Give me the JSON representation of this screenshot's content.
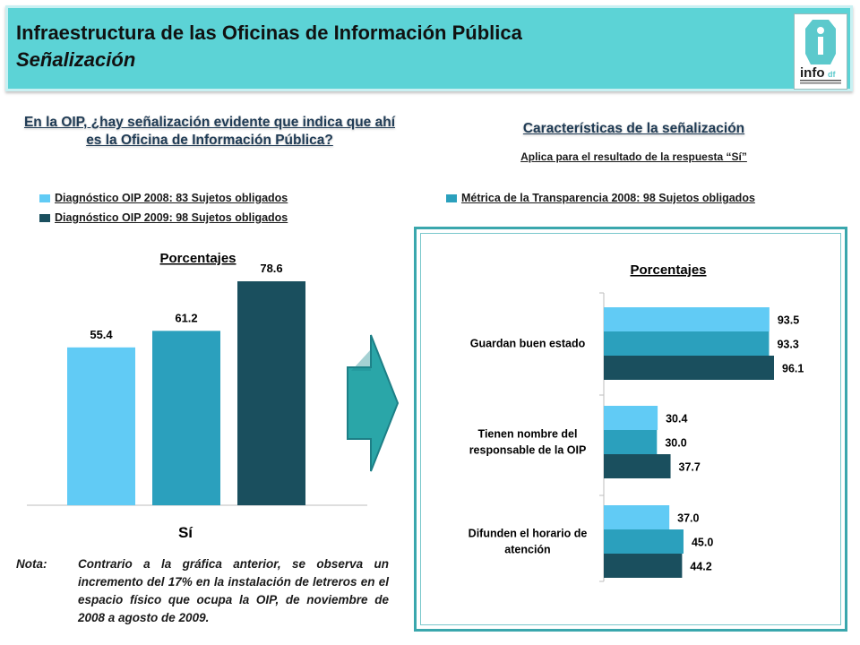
{
  "header": {
    "title": "Infraestructura de las Oficinas de Información Pública",
    "subtitle": "Señalización",
    "logo_text": "info",
    "logo_suffix": "df"
  },
  "left": {
    "question": "En la OIP, ¿hay  señalización evidente que indica que ahí es la Oficina de Información Pública?",
    "legend": [
      {
        "label": "Diagnóstico OIP 2008: 83 Sujetos obligados",
        "color": "#61cbf5"
      },
      {
        "label": "Diagnóstico OIP 2009: 98 Sujetos obligados",
        "color": "#1a4f5e"
      }
    ]
  },
  "right": {
    "heading": "Características de la señalización",
    "subheading": "Aplica para el resultado de la respuesta “Sí”",
    "legend": [
      {
        "label": "Métrica de la Transparencia 2008: 98 Sujetos obligados",
        "color": "#2ba0bd"
      }
    ]
  },
  "note": {
    "label": "Nota:",
    "text": "Contrario a la gráfica anterior, se observa un incremento del 17% en la instalación de letreros en el espacio físico que ocupa la OIP, de noviembre de 2008 a agosto de 2009."
  },
  "chart_data": [
    {
      "type": "bar",
      "title": "Porcentajes",
      "categories": [
        "Sí"
      ],
      "series": [
        {
          "name": "Diagnóstico OIP 2008: 83 Sujetos obligados",
          "values": [
            55.4
          ],
          "color": "#61cbf5"
        },
        {
          "name": "Métrica de la Transparencia 2008: 98 Sujetos obligados",
          "values": [
            61.2
          ],
          "color": "#2ba0bd"
        },
        {
          "name": "Diagnóstico OIP 2009: 98 Sujetos obligados",
          "values": [
            78.6
          ],
          "color": "#1a4f5e"
        }
      ],
      "ylim": [
        0,
        100
      ],
      "grid": false
    },
    {
      "type": "bar",
      "orientation": "horizontal",
      "title": "Porcentajes",
      "categories": [
        "Guardan buen estado",
        "Tienen nombre del responsable de la OIP",
        "Difunden el horario de atención"
      ],
      "series": [
        {
          "name": "Diagnóstico OIP 2008: 83 Sujetos obligados",
          "values": [
            93.5,
            30.4,
            37.0
          ],
          "color": "#61cbf5"
        },
        {
          "name": "Métrica de la Transparencia 2008: 98 Sujetos obligados",
          "values": [
            93.3,
            30.0,
            45.0
          ],
          "color": "#2ba0bd"
        },
        {
          "name": "Diagnóstico OIP 2009: 98 Sujetos obligados",
          "values": [
            96.1,
            37.7,
            44.2
          ],
          "color": "#1a4f5e"
        }
      ],
      "xlim": [
        0,
        100
      ],
      "grid": false
    }
  ]
}
